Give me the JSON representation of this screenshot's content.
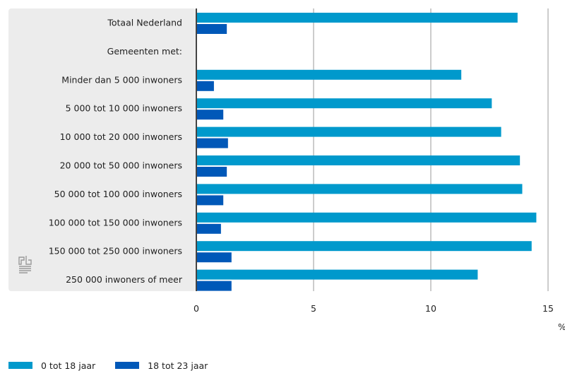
{
  "chart_data": {
    "type": "bar",
    "orientation": "horizontal",
    "unit": "%",
    "categories": [
      "Totaal Nederland",
      "Gemeenten met:",
      "Minder dan 5 000 inwoners",
      "5 000 tot 10 000 inwoners",
      "10 000 tot 20 000 inwoners",
      "20 000 tot 50 000 inwoners",
      "50 000 tot 100 000 inwoners",
      "100 000 tot 150 000 inwoners",
      "150 000 tot 250 000 inwoners",
      "250 000 inwoners of meer"
    ],
    "series": [
      {
        "name": "0 tot 18 jaar",
        "color": "#0099cc",
        "values": [
          13.7,
          null,
          11.3,
          12.6,
          13.0,
          13.8,
          13.9,
          14.5,
          14.3,
          12.0
        ]
      },
      {
        "name": "18 tot 23 jaar",
        "color": "#0058b8",
        "values": [
          1.3,
          null,
          0.75,
          1.15,
          1.35,
          1.3,
          1.15,
          1.05,
          1.5,
          1.5
        ]
      }
    ],
    "xlim": [
      0,
      15
    ],
    "xticks": [
      0,
      5,
      10,
      15
    ],
    "grid": true,
    "legend": "bottom-left",
    "logo_icon": "cbs-logo-icon"
  }
}
